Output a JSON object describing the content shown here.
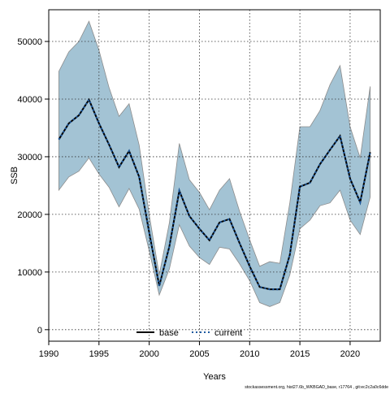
{
  "chart_data": {
    "type": "line",
    "xlabel": "Years",
    "ylabel": "SSB",
    "xlim": [
      1990,
      2023
    ],
    "ylim": [
      -2000,
      55500
    ],
    "x_ticks": [
      1990,
      1995,
      2000,
      2005,
      2010,
      2015,
      2020
    ],
    "y_ticks": [
      0,
      10000,
      20000,
      30000,
      40000,
      50000
    ],
    "grid": true,
    "legend_position": "bottom-center",
    "x": [
      1991,
      1992,
      1993,
      1994,
      1995,
      1996,
      1997,
      1998,
      1999,
      2000,
      2001,
      2002,
      2003,
      2004,
      2005,
      2006,
      2007,
      2008,
      2009,
      2010,
      2011,
      2012,
      2013,
      2014,
      2015,
      2016,
      2017,
      2018,
      2019,
      2020,
      2021,
      2022
    ],
    "band": {
      "upper": [
        44800,
        48200,
        50000,
        53500,
        48500,
        42000,
        37000,
        39200,
        32000,
        20000,
        9500,
        18500,
        32300,
        26000,
        23800,
        20800,
        24200,
        26200,
        20500,
        15600,
        11000,
        11800,
        11500,
        22000,
        35200,
        35200,
        38000,
        42500,
        45800,
        35200,
        29800,
        42200
      ],
      "lower": [
        24200,
        26500,
        27500,
        29800,
        27000,
        24700,
        21300,
        24500,
        20900,
        13700,
        6000,
        10500,
        18200,
        14500,
        12500,
        11300,
        14300,
        14000,
        11400,
        8500,
        4700,
        4000,
        4700,
        9500,
        17500,
        19000,
        21500,
        22000,
        24200,
        19000,
        16500,
        23000
      ],
      "color": "#a3c3d4",
      "edge_color": "#8c8c8c"
    },
    "series": [
      {
        "name": "base",
        "line_style": "solid",
        "color": "#000000",
        "values": [
          33000,
          35800,
          37200,
          39900,
          35800,
          32100,
          28200,
          31000,
          26500,
          16900,
          7600,
          14400,
          24100,
          19700,
          17500,
          15500,
          18600,
          19200,
          15000,
          11000,
          7400,
          7000,
          7000,
          13000,
          24800,
          25500,
          28700,
          31200,
          33600,
          26200,
          22100,
          30800
        ]
      },
      {
        "name": "current",
        "line_style": "dotted",
        "color": "#1e5aa0",
        "values": [
          33000,
          35800,
          37200,
          39900,
          35800,
          32100,
          28200,
          31000,
          26500,
          16900,
          7600,
          14400,
          24100,
          19700,
          17500,
          15500,
          18600,
          19200,
          15000,
          11000,
          7400,
          7000,
          7000,
          13000,
          24800,
          25500,
          28700,
          31200,
          33600,
          26200,
          22100,
          30800
        ]
      }
    ],
    "footnote": "stockassessment.org, hist27.6b_WKBGAD_base, r17764 , git:ec2c2a0c6dde"
  }
}
